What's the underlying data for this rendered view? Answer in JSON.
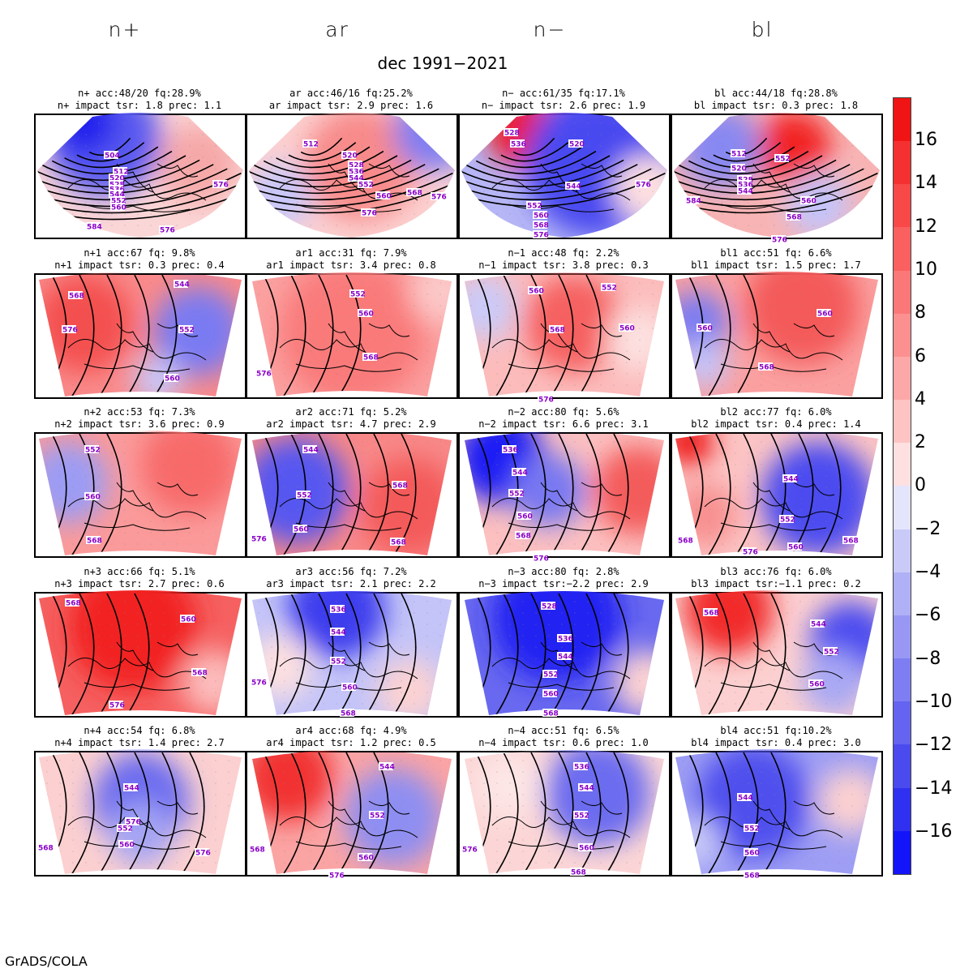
{
  "column_headers": [
    "n+",
    "ar",
    "n−",
    "bl"
  ],
  "main_title": "dec 1991−2021",
  "footer": "GrADS/COLA",
  "colorbar": {
    "ticks": [
      "16",
      "14",
      "12",
      "10",
      "8",
      "6",
      "4",
      "2",
      "0",
      "−2",
      "−4",
      "−6",
      "−8",
      "−10",
      "−12",
      "−14",
      "−16"
    ],
    "colors": [
      "#f01414",
      "#f53030",
      "#f84848",
      "#fa6060",
      "#fb7878",
      "#fc9090",
      "#fda8a8",
      "#fec4c4",
      "#fee0e0",
      "#e4e4fc",
      "#cacaf8",
      "#b0b0f6",
      "#9898f4",
      "#7e7ef2",
      "#6464f0",
      "#4a4aee",
      "#3030f0",
      "#1414f8"
    ]
  },
  "panels": [
    [
      {
        "line1": "n+ acc:48/20 fq:28.9%",
        "line2": "n+ impact tsr: 1.8 prec: 1.1",
        "labels": [
          "504",
          "512",
          "520",
          "528",
          "536",
          "544",
          "552",
          "560",
          "584",
          "576",
          "576"
        ]
      },
      {
        "line1": "ar acc:46/16 fq:25.2%",
        "line2": "ar impact tsr: 2.9 prec: 1.6",
        "labels": [
          "512",
          "520",
          "528",
          "536",
          "544",
          "552",
          "560",
          "568",
          "576",
          "576"
        ]
      },
      {
        "line1": "n− acc:61/35 fq:17.1%",
        "line2": "n− impact tsr: 2.6 prec: 1.9",
        "labels": [
          "528",
          "536",
          "520",
          "544",
          "552",
          "560",
          "568",
          "576",
          "576"
        ]
      },
      {
        "line1": "bl acc:44/18 fq:28.8%",
        "line2": "bl impact tsr: 0.3 prec: 1.8",
        "labels": [
          "512",
          "520",
          "528",
          "536",
          "544",
          "552",
          "560",
          "568",
          "576",
          "584"
        ]
      }
    ],
    [
      {
        "line1": "n+1 acc:67 fq: 9.8%",
        "line2": "n+1 impact tsr: 0.3 prec: 0.4",
        "labels": [
          "568",
          "544",
          "576",
          "552",
          "560"
        ]
      },
      {
        "line1": "ar1 acc:31 fq: 7.9%",
        "line2": "ar1 impact tsr: 3.4 prec: 0.8",
        "labels": [
          "552",
          "560",
          "568",
          "576"
        ]
      },
      {
        "line1": "n−1 acc:48 fq: 2.2%",
        "line2": "n−1 impact tsr: 3.8 prec: 0.3",
        "labels": [
          "560",
          "552",
          "568",
          "560",
          "576"
        ]
      },
      {
        "line1": "bl1 acc:51 fq: 6.6%",
        "line2": "bl1 impact tsr: 1.5 prec: 1.7",
        "labels": [
          "560",
          "560",
          "568"
        ]
      }
    ],
    [
      {
        "line1": "n+2 acc:53 fq: 7.3%",
        "line2": "n+2 impact tsr: 3.6 prec: 0.9",
        "labels": [
          "552",
          "560",
          "568"
        ]
      },
      {
        "line1": "ar2 acc:71 fq: 5.2%",
        "line2": "ar2 impact tsr: 4.7 prec: 2.9",
        "labels": [
          "544",
          "552",
          "568",
          "560",
          "568",
          "576"
        ]
      },
      {
        "line1": "n−2 acc:80 fq: 5.6%",
        "line2": "n−2 impact tsr: 6.6 prec: 3.1",
        "labels": [
          "536",
          "544",
          "552",
          "560",
          "568",
          "576"
        ]
      },
      {
        "line1": "bl2 acc:77 fq: 6.0%",
        "line2": "bl2 impact tsr: 0.4 prec: 1.4",
        "labels": [
          "544",
          "552",
          "560",
          "568",
          "576",
          "568"
        ]
      }
    ],
    [
      {
        "line1": "n+3 acc:66 fq: 5.1%",
        "line2": "n+3 impact tsr: 2.7 prec: 0.6",
        "labels": [
          "568",
          "560",
          "568",
          "576"
        ]
      },
      {
        "line1": "ar3 acc:56 fq: 7.2%",
        "line2": "ar3 impact tsr: 2.1 prec: 2.2",
        "labels": [
          "536",
          "544",
          "552",
          "560",
          "568",
          "576"
        ]
      },
      {
        "line1": "n−3 acc:80 fq: 2.8%",
        "line2": "n−3 impact tsr:−2.2 prec: 2.9",
        "labels": [
          "528",
          "536",
          "544",
          "552",
          "560",
          "568"
        ]
      },
      {
        "line1": "bl3 acc:76 fq: 6.0%",
        "line2": "bl3 impact tsr:−1.1 prec: 0.2",
        "labels": [
          "568",
          "544",
          "552",
          "560"
        ]
      }
    ],
    [
      {
        "line1": "n+4 acc:54 fq: 6.8%",
        "line2": "n+4 impact tsr: 1.4 prec: 2.7",
        "labels": [
          "544",
          "552",
          "560",
          "568",
          "576",
          "576"
        ]
      },
      {
        "line1": "ar4 acc:68 fq: 4.9%",
        "line2": "ar4 impact tsr: 1.2 prec: 0.5",
        "labels": [
          "544",
          "552",
          "560",
          "568",
          "576"
        ]
      },
      {
        "line1": "n−4 acc:51 fq: 6.5%",
        "line2": "n−4 impact tsr: 0.6 prec: 1.0",
        "labels": [
          "536",
          "544",
          "552",
          "560",
          "568",
          "576"
        ]
      },
      {
        "line1": "bl4 acc:51 fq:10.2%",
        "line2": "bl4 impact tsr: 0.4 prec: 3.0",
        "labels": [
          "544",
          "552",
          "560",
          "568"
        ]
      }
    ]
  ]
}
